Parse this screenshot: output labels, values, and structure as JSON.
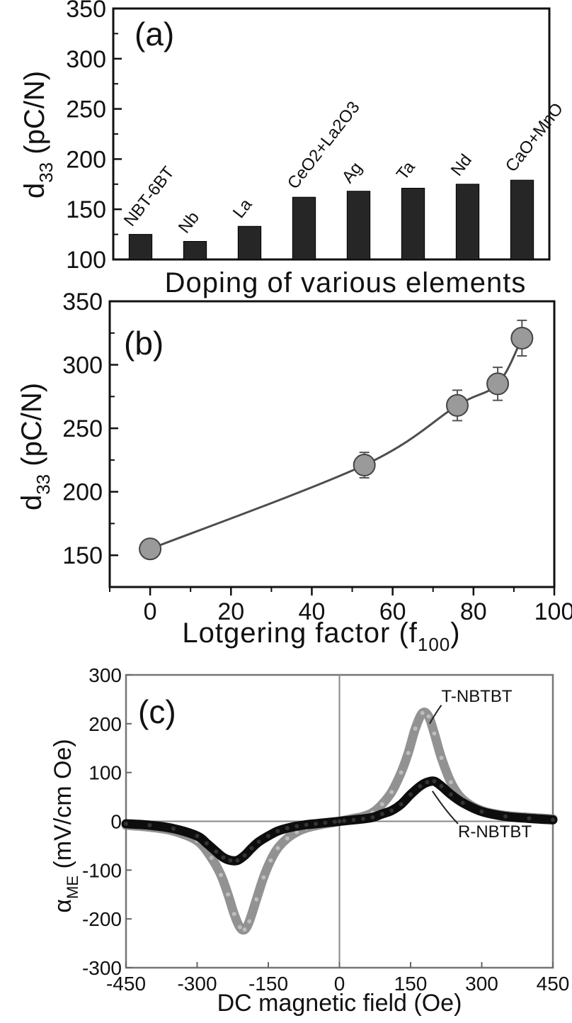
{
  "chart_data": [
    {
      "panel": "(a)",
      "type": "bar",
      "xlabel": "Doping of various elements",
      "ylabel_main": "d",
      "ylabel_sub": "33",
      "ylabel_unit": "(pC/N)",
      "ylim": [
        100,
        350
      ],
      "yticks": [
        100,
        150,
        200,
        250,
        300,
        350
      ],
      "categories": [
        "NBT-6BT",
        "Nb",
        "La",
        "CeO2+La2O3",
        "Ag",
        "Ta",
        "Nd",
        "CaO+MnO"
      ],
      "values": [
        125,
        118,
        133,
        162,
        168,
        171,
        175,
        179
      ],
      "bar_color": "#262626"
    },
    {
      "panel": "(b)",
      "type": "line",
      "xlabel_main": "Lotgering factor (f",
      "xlabel_sub": "100",
      "xlabel_close": ")",
      "ylabel_main": "d",
      "ylabel_sub": "33",
      "ylabel_unit": "(pC/N)",
      "xlim": [
        -10,
        100
      ],
      "ylim": [
        125,
        350
      ],
      "xticks": [
        0,
        20,
        40,
        60,
        80,
        100
      ],
      "yticks": [
        150,
        200,
        250,
        300,
        350
      ],
      "x": [
        0,
        53,
        76,
        86,
        92
      ],
      "y": [
        155,
        221,
        268,
        285,
        321
      ],
      "yerr": [
        3,
        10,
        12,
        13,
        14
      ],
      "marker_color": "#9a9a9a",
      "line_color": "#4d4d4d"
    },
    {
      "panel": "(c)",
      "type": "line",
      "xlabel": "DC magnetic field (Oe)",
      "ylabel_main": "α",
      "ylabel_sub": "ME",
      "ylabel_unit": "(mV/cm Oe)",
      "xlim": [
        -450,
        450
      ],
      "ylim": [
        -300,
        300
      ],
      "xticks": [
        -450,
        -300,
        -150,
        0,
        150,
        300,
        450
      ],
      "yticks": [
        -300,
        -200,
        -100,
        0,
        100,
        200,
        300
      ],
      "series": [
        {
          "name": "T-NBTBT",
          "color": "#8c8c8c",
          "x": [
            -450,
            -400,
            -350,
            -300,
            -270,
            -250,
            -235,
            -222,
            -210,
            -200,
            -190,
            -175,
            -160,
            -145,
            -130,
            -110,
            -90,
            -70,
            -50,
            -30,
            -10,
            0,
            10,
            30,
            50,
            70,
            90,
            110,
            130,
            145,
            160,
            175,
            188,
            200,
            215,
            235,
            260,
            300,
            350,
            400,
            450
          ],
          "y": [
            -8,
            -12,
            -20,
            -40,
            -75,
            -110,
            -150,
            -190,
            -217,
            -222,
            -205,
            -160,
            -115,
            -80,
            -55,
            -35,
            -22,
            -14,
            -9,
            -5,
            -2,
            0,
            2,
            6,
            10,
            18,
            35,
            60,
            100,
            140,
            190,
            222,
            215,
            180,
            130,
            80,
            45,
            22,
            12,
            8,
            5
          ]
        },
        {
          "name": "R-NBTBT",
          "color": "#0d0d0d",
          "x": [
            -450,
            -400,
            -350,
            -300,
            -280,
            -260,
            -245,
            -230,
            -215,
            -200,
            -185,
            -170,
            -150,
            -130,
            -110,
            -90,
            -70,
            -50,
            -30,
            -10,
            0,
            10,
            30,
            50,
            70,
            90,
            110,
            130,
            150,
            170,
            185,
            200,
            215,
            235,
            260,
            300,
            350,
            400,
            450
          ],
          "y": [
            -5,
            -8,
            -15,
            -30,
            -45,
            -62,
            -74,
            -80,
            -80,
            -70,
            -55,
            -42,
            -30,
            -20,
            -14,
            -10,
            -7,
            -5,
            -3,
            -1,
            0,
            1,
            3,
            5,
            8,
            15,
            22,
            35,
            55,
            72,
            80,
            82,
            72,
            55,
            38,
            20,
            10,
            6,
            3
          ]
        }
      ]
    }
  ]
}
